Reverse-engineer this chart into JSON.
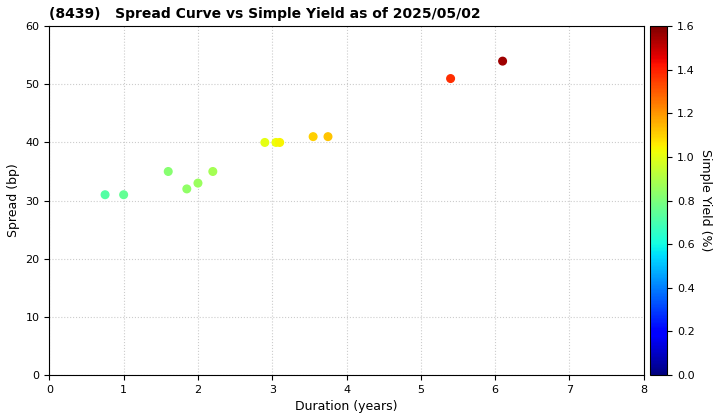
{
  "title": "(8439)   Spread Curve vs Simple Yield as of 2025/05/02",
  "xlabel": "Duration (years)",
  "ylabel": "Spread (bp)",
  "colorbar_label": "Simple Yield (%)",
  "xlim": [
    0,
    8
  ],
  "ylim": [
    0,
    60
  ],
  "xticks": [
    0,
    1,
    2,
    3,
    4,
    5,
    6,
    7,
    8
  ],
  "yticks": [
    0,
    10,
    20,
    30,
    40,
    50,
    60
  ],
  "colorbar_min": 0.0,
  "colorbar_max": 1.6,
  "points": [
    {
      "duration": 0.75,
      "spread": 31,
      "simple_yield": 0.72
    },
    {
      "duration": 1.0,
      "spread": 31,
      "simple_yield": 0.75
    },
    {
      "duration": 1.6,
      "spread": 35,
      "simple_yield": 0.82
    },
    {
      "duration": 1.85,
      "spread": 32,
      "simple_yield": 0.84
    },
    {
      "duration": 2.0,
      "spread": 33,
      "simple_yield": 0.86
    },
    {
      "duration": 2.2,
      "spread": 35,
      "simple_yield": 0.88
    },
    {
      "duration": 2.9,
      "spread": 40,
      "simple_yield": 1.0
    },
    {
      "duration": 3.05,
      "spread": 40,
      "simple_yield": 1.02
    },
    {
      "duration": 3.1,
      "spread": 40,
      "simple_yield": 1.04
    },
    {
      "duration": 3.55,
      "spread": 41,
      "simple_yield": 1.1
    },
    {
      "duration": 3.75,
      "spread": 41,
      "simple_yield": 1.12
    },
    {
      "duration": 5.4,
      "spread": 51,
      "simple_yield": 1.38
    },
    {
      "duration": 6.1,
      "spread": 54,
      "simple_yield": 1.55
    }
  ],
  "marker_size": 30,
  "background_color": "#ffffff",
  "grid_color": "#cccccc",
  "colormap": "jet",
  "title_fontsize": 10,
  "axis_fontsize": 9,
  "tick_fontsize": 8
}
